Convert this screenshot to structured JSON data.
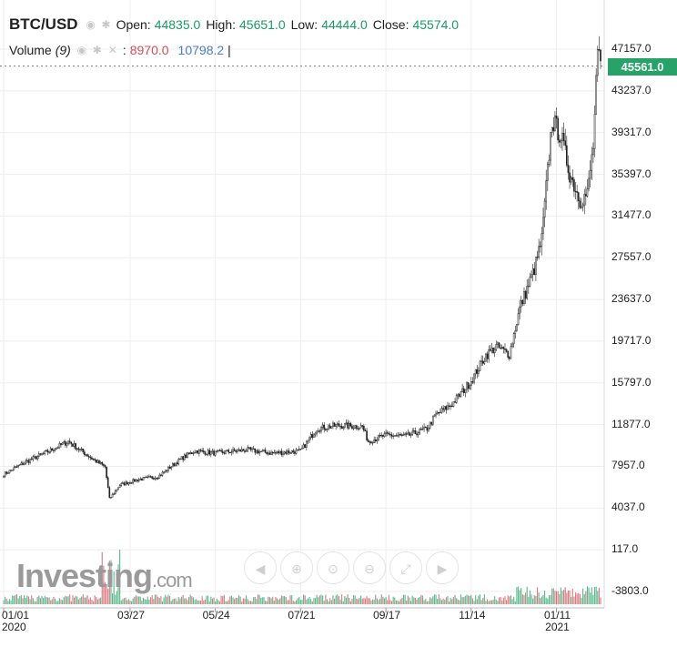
{
  "header": {
    "symbol": "BTC/USD",
    "open_label": "Open:",
    "open_value": "44835.0",
    "high_label": "High:",
    "high_value": "45651.0",
    "low_label": "Low:",
    "low_value": "44444.0",
    "close_label": "Close:",
    "close_value": "45574.0"
  },
  "volume_legend": {
    "label": "Volume",
    "period": "(9)",
    "separator": ":",
    "value_1": "8970.0",
    "value_2": "10798.2",
    "cursor": "|"
  },
  "last_price": "45561.0",
  "logo": {
    "main": "Investing",
    "suffix": ".com"
  },
  "colors": {
    "up": "#27a36a",
    "down": "#d0505a",
    "volume": "#4a7fc1",
    "grid": "#eeeeee"
  },
  "icons": [
    "eye-icon",
    "gear-icon",
    "close-icon"
  ],
  "nav_buttons": [
    "scroll-left-icon",
    "zoom-in-icon",
    "zoom-reset-icon",
    "zoom-out-icon",
    "zoom-fit-icon",
    "scroll-right-icon"
  ],
  "chart_data": {
    "type": "line",
    "title": "BTC/USD",
    "y_ticks": [
      "47157.0",
      "43237.0",
      "39317.0",
      "35397.0",
      "31477.0",
      "27557.0",
      "23637.0",
      "19717.0",
      "15797.0",
      "11877.0",
      "7957.0",
      "4037.0",
      "117.0",
      "-3803.0"
    ],
    "x_ticks": [
      {
        "label": "01/01",
        "sub": "2020"
      },
      {
        "label": "03/27",
        "sub": ""
      },
      {
        "label": "05/24",
        "sub": ""
      },
      {
        "label": "07/21",
        "sub": ""
      },
      {
        "label": "09/17",
        "sub": ""
      },
      {
        "label": "11/14",
        "sub": ""
      },
      {
        "label": "01/11",
        "sub": "2021"
      }
    ],
    "ylim": [
      -3803,
      47157
    ],
    "dates": [
      "2020-01-01",
      "2020-01-15",
      "2020-02-01",
      "2020-02-14",
      "2020-03-01",
      "2020-03-10",
      "2020-03-13",
      "2020-03-20",
      "2020-04-01",
      "2020-04-15",
      "2020-05-01",
      "2020-05-10",
      "2020-05-24",
      "2020-06-15",
      "2020-07-01",
      "2020-07-21",
      "2020-08-01",
      "2020-08-15",
      "2020-09-01",
      "2020-09-05",
      "2020-09-17",
      "2020-10-01",
      "2020-10-15",
      "2020-10-21",
      "2020-11-01",
      "2020-11-14",
      "2020-11-24",
      "2020-12-01",
      "2020-12-10",
      "2020-12-17",
      "2020-12-27",
      "2021-01-01",
      "2021-01-08",
      "2021-01-14",
      "2021-01-20",
      "2021-01-27",
      "2021-02-01",
      "2021-02-05",
      "2021-02-08",
      "2021-02-10"
    ],
    "close": [
      7200,
      8300,
      9400,
      10300,
      8700,
      7900,
      4900,
      6200,
      6700,
      7000,
      8700,
      9400,
      9200,
      9500,
      9200,
      9400,
      11500,
      11800,
      11700,
      10300,
      10900,
      10800,
      11500,
      12800,
      13800,
      16000,
      18400,
      19200,
      18500,
      22800,
      26500,
      29300,
      40500,
      39000,
      35500,
      33000,
      33500,
      38000,
      46500,
      45561
    ],
    "volume_max": 40000
  }
}
